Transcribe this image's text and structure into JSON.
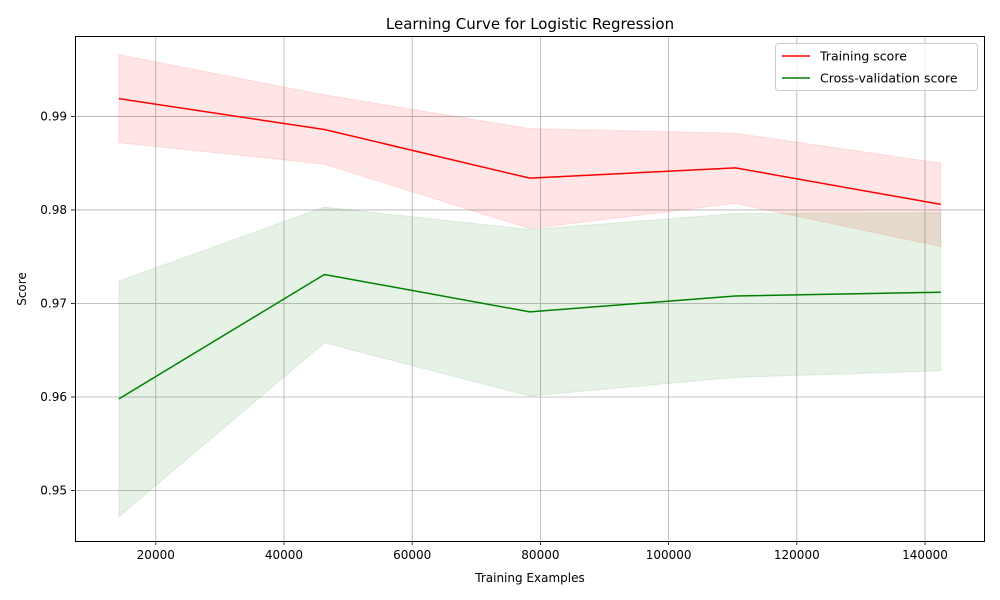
{
  "chart_data": {
    "type": "line",
    "title": "Learning Curve for Logistic Regression",
    "xlabel": "Training Examples",
    "ylabel": "Score",
    "xlim": [
      7400,
      149200
    ],
    "ylim": [
      0.9446,
      0.9986
    ],
    "xticks": [
      20000,
      40000,
      60000,
      80000,
      100000,
      120000,
      140000
    ],
    "xtick_labels": [
      "20000",
      "40000",
      "60000",
      "80000",
      "100000",
      "120000",
      "140000"
    ],
    "yticks": [
      0.95,
      0.96,
      0.97,
      0.98,
      0.99
    ],
    "ytick_labels": [
      "0.95",
      "0.96",
      "0.97",
      "0.98",
      "0.99"
    ],
    "grid": true,
    "legend_position": "upper right",
    "x": [
      14250,
      46300,
      78350,
      110400,
      142450
    ],
    "series": [
      {
        "name": "Training score",
        "color": "#ff0000",
        "band_color": "#ff0000",
        "values": [
          0.9919,
          0.9886,
          0.9834,
          0.9845,
          0.9806
        ],
        "band_low": [
          0.9872,
          0.9849,
          0.978,
          0.9807,
          0.9761
        ],
        "band_high": [
          0.9966,
          0.9923,
          0.9887,
          0.9882,
          0.985
        ]
      },
      {
        "name": "Cross-validation score",
        "color": "#008000",
        "band_color": "#008000",
        "values": [
          0.9598,
          0.9731,
          0.9691,
          0.9708,
          0.9712
        ],
        "band_low": [
          0.9472,
          0.9658,
          0.9601,
          0.9621,
          0.9628
        ],
        "band_high": [
          0.9724,
          0.9803,
          0.9779,
          0.9796,
          0.9797
        ]
      }
    ]
  }
}
